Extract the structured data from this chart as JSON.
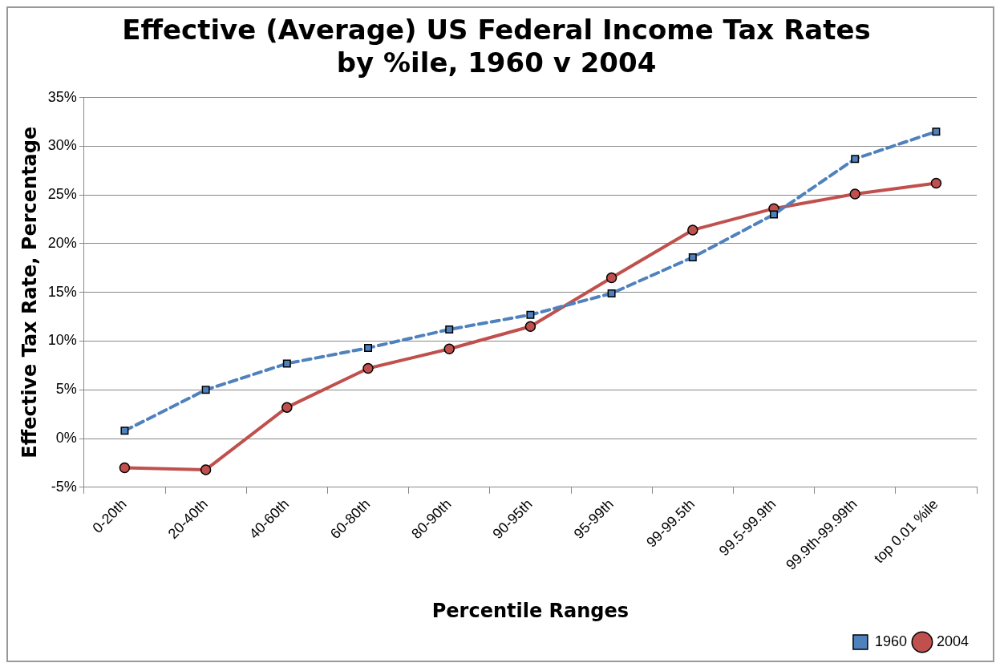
{
  "chart_data": {
    "type": "line",
    "title": [
      "Effective (Average) US Federal Income Tax Rates",
      "by %ile, 1960 v 2004"
    ],
    "xlabel": "Percentile Ranges",
    "ylabel": "Effective Tax Rate, Percentage",
    "categories": [
      "0-20th",
      "20-40th",
      "40-60th",
      "60-80th",
      "80-90th",
      "90-95th",
      "95-99th",
      "99-99.5th",
      "99.5-99.9th",
      "99.9th-99.99th",
      "top 0.01 %ile"
    ],
    "series": [
      {
        "name": "1960",
        "color": "#4f81bd",
        "marker": "square",
        "line_style": "dashed",
        "values": [
          0.8,
          5.0,
          7.7,
          9.3,
          11.2,
          12.7,
          14.9,
          18.6,
          23.0,
          28.7,
          31.5
        ]
      },
      {
        "name": "2004",
        "color": "#c0504d",
        "marker": "circle",
        "line_style": "solid",
        "values": [
          -3.0,
          -3.2,
          3.2,
          7.2,
          9.2,
          11.5,
          16.5,
          21.4,
          23.6,
          25.1,
          26.2
        ]
      }
    ],
    "ylim": [
      -5,
      35
    ],
    "yticks": [
      {
        "value": -5,
        "label": "-5%"
      },
      {
        "value": 0,
        "label": "0%"
      },
      {
        "value": 5,
        "label": "5%"
      },
      {
        "value": 10,
        "label": "10%"
      },
      {
        "value": 15,
        "label": "15%"
      },
      {
        "value": 20,
        "label": "20%"
      },
      {
        "value": 25,
        "label": "25%"
      },
      {
        "value": 30,
        "label": "30%"
      },
      {
        "value": 35,
        "label": "35%"
      }
    ],
    "grid": "y",
    "legend": "bottom right"
  }
}
